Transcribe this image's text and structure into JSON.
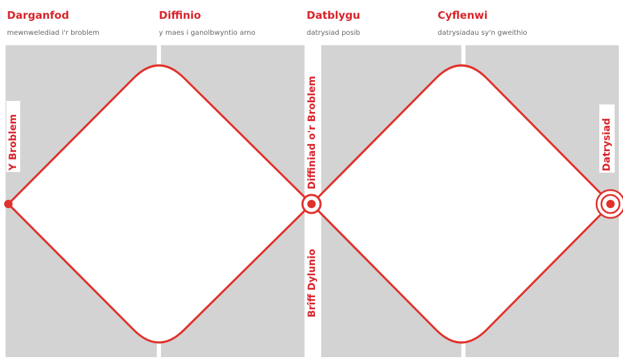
{
  "phases": [
    {
      "title": "Darganfod",
      "subtitle": "mewnwelediad i'r broblem"
    },
    {
      "title": "Diffinio",
      "subtitle": "y maes i ganolbwyntio arno"
    },
    {
      "title": "Datblygu",
      "subtitle": "datrysiad posib"
    },
    {
      "title": "Cyflenwi",
      "subtitle": "datrysiadau sy'n gweithio"
    }
  ],
  "labels": {
    "start": "Y Broblem",
    "middle_top": "Diffiniad o'r Broblem",
    "middle_bottom": "Brîff Dylunio",
    "end": "Datrysiad"
  }
}
